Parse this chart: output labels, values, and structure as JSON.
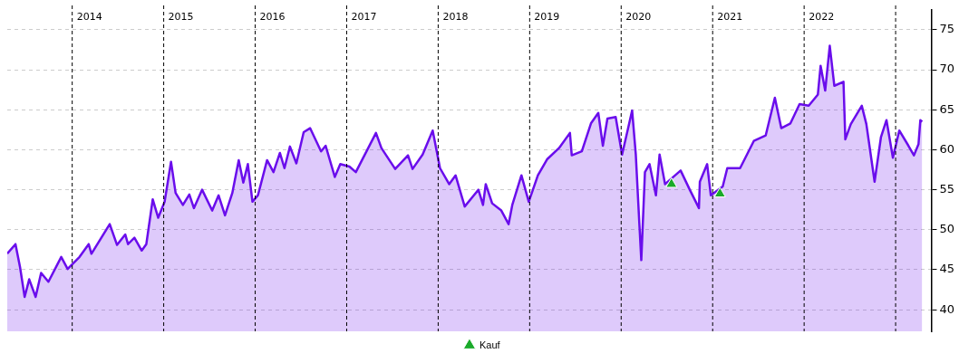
{
  "chart_data": {
    "type": "area",
    "xlim": [
      2013.29,
      2023.39
    ],
    "ylim": [
      37.3,
      77.5
    ],
    "yticks": [
      40,
      45,
      50,
      55,
      60,
      65,
      70,
      75
    ],
    "grid": "y",
    "tick_labels": "y",
    "legend": "bottom",
    "series": [
      {
        "color": "#6a0dec",
        "x": [
          2013.29,
          2013.38,
          2013.43,
          2013.48,
          2013.53,
          2013.6,
          2013.66,
          2013.74,
          2013.88,
          2013.95,
          2014.08,
          2014.18,
          2014.21,
          2014.41,
          2014.49,
          2014.58,
          2014.61,
          2014.68,
          2014.76,
          2014.81,
          2014.88,
          2014.94,
          2015.01,
          2015.08,
          2015.13,
          2015.21,
          2015.28,
          2015.33,
          2015.42,
          2015.53,
          2015.6,
          2015.67,
          2015.75,
          2015.82,
          2015.87,
          2015.92,
          2015.97,
          2016.03,
          2016.13,
          2016.2,
          2016.27,
          2016.32,
          2016.38,
          2016.45,
          2016.53,
          2016.6,
          2016.72,
          2016.77,
          2016.87,
          2016.93,
          2017.03,
          2017.1,
          2017.32,
          2017.38,
          2017.53,
          2017.67,
          2017.72,
          2017.83,
          2017.94,
          2018.02,
          2018.12,
          2018.19,
          2018.29,
          2018.39,
          2018.44,
          2018.49,
          2018.52,
          2018.59,
          2018.69,
          2018.77,
          2018.81,
          2018.91,
          2018.99,
          2019.09,
          2019.19,
          2019.32,
          2019.44,
          2019.46,
          2019.57,
          2019.67,
          2019.75,
          2019.8,
          2019.85,
          2019.94,
          2020.01,
          2020.07,
          2020.12,
          2020.16,
          2020.2,
          2020.22,
          2020.26,
          2020.31,
          2020.38,
          2020.42,
          2020.48,
          2020.65,
          2020.75,
          2020.85,
          2020.86,
          2020.94,
          2020.98,
          2021.11,
          2021.16,
          2021.3,
          2021.45,
          2021.58,
          2021.68,
          2021.75,
          2021.85,
          2021.95,
          2022.05,
          2022.15,
          2022.18,
          2022.23,
          2022.28,
          2022.33,
          2022.43,
          2022.45,
          2022.51,
          2022.63,
          2022.68,
          2022.77,
          2022.84,
          2022.9,
          2022.97,
          2023.04,
          2023.14,
          2023.2,
          2023.25,
          2023.27,
          2023.29
        ],
        "values": [
          47.0,
          48.2,
          45.3,
          41.6,
          43.8,
          41.6,
          44.6,
          43.5,
          46.6,
          45.1,
          46.6,
          48.2,
          47.0,
          50.7,
          48.1,
          49.4,
          48.2,
          49.0,
          47.4,
          48.2,
          53.8,
          51.5,
          53.5,
          58.5,
          54.6,
          53.1,
          54.4,
          52.7,
          55.0,
          52.4,
          54.3,
          51.8,
          54.6,
          58.7,
          55.9,
          58.2,
          53.5,
          54.3,
          58.7,
          57.2,
          59.6,
          57.7,
          60.4,
          58.3,
          62.2,
          62.7,
          59.8,
          60.5,
          56.6,
          58.2,
          57.9,
          57.2,
          62.1,
          60.2,
          57.6,
          59.3,
          57.6,
          59.4,
          62.4,
          57.7,
          55.7,
          56.8,
          52.9,
          54.3,
          55.0,
          53.1,
          55.7,
          53.3,
          52.4,
          50.7,
          53.1,
          56.8,
          53.5,
          56.8,
          58.8,
          60.2,
          62.1,
          59.3,
          59.8,
          63.3,
          64.6,
          60.5,
          63.9,
          64.1,
          59.4,
          62.4,
          64.9,
          59.4,
          50.5,
          46.2,
          57.2,
          58.2,
          54.3,
          59.4,
          55.7,
          57.4,
          55.0,
          52.7,
          56.0,
          58.2,
          54.3,
          55.4,
          57.7,
          57.7,
          61.1,
          61.8,
          66.5,
          62.7,
          63.3,
          65.7,
          65.5,
          66.9,
          70.5,
          67.4,
          73.0,
          68.0,
          68.5,
          61.3,
          63.2,
          65.5,
          63.2,
          56.0,
          61.6,
          63.7,
          59.0,
          62.4,
          60.5,
          59.3,
          60.7,
          63.7,
          63.5
        ]
      },
      {
        "type": "scatter",
        "name": "Kauf",
        "color": "#1aaa2a",
        "marker": "triangle",
        "x": [
          2020.55,
          2021.08
        ],
        "values": [
          55.7,
          54.5
        ]
      }
    ],
    "ref_lines": [
      {
        "axis": "x",
        "value": 2014,
        "label": "2014",
        "color": "#000000",
        "line_style": "dashed"
      },
      {
        "axis": "x",
        "value": 2015,
        "label": "2015",
        "color": "#000000",
        "line_style": "dashed"
      },
      {
        "axis": "x",
        "value": 2016,
        "label": "2016",
        "color": "#000000",
        "line_style": "dashed"
      },
      {
        "axis": "x",
        "value": 2017,
        "label": "2017",
        "color": "#000000",
        "line_style": "dashed"
      },
      {
        "axis": "x",
        "value": 2018,
        "label": "2018",
        "color": "#000000",
        "line_style": "dashed"
      },
      {
        "axis": "x",
        "value": 2019,
        "label": "2019",
        "color": "#000000",
        "line_style": "dashed"
      },
      {
        "axis": "x",
        "value": 2020,
        "label": "2020",
        "color": "#000000",
        "line_style": "dashed"
      },
      {
        "axis": "x",
        "value": 2021,
        "label": "2021",
        "color": "#000000",
        "line_style": "dashed"
      },
      {
        "axis": "x",
        "value": 2022,
        "label": "2022",
        "color": "#000000",
        "line_style": "dashed"
      },
      {
        "axis": "x",
        "value": 2023,
        "label": null,
        "color": "#000000",
        "line_style": "dashed"
      }
    ]
  }
}
